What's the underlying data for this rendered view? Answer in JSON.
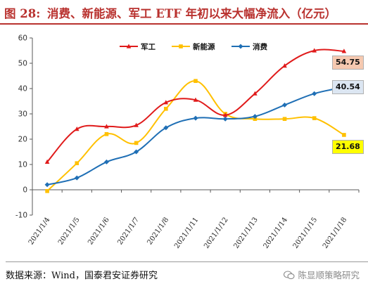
{
  "title": {
    "prefix": "图 28:",
    "text": "消费、新能源、军工 ETF 年初以来大幅净流入（亿元）"
  },
  "source": "数据来源：Wind，国泰君安证券研究",
  "watermark": "陈显顺策略研究",
  "colors": {
    "military": "#e01b1b",
    "newenergy": "#ffc000",
    "consumer": "#1f6fb5",
    "military_label_bg": "#f6c9b0",
    "newenergy_label_bg": "#ffff00",
    "consumer_label_bg": "#dce6f2"
  },
  "end_labels": {
    "military": "54.75",
    "consumer": "40.54",
    "newenergy": "21.68"
  },
  "chart_data": {
    "type": "line",
    "categories": [
      "2021/1/4",
      "2021/1/5",
      "2021/1/6",
      "2021/1/7",
      "2021/1/8",
      "2021/1/11",
      "2021/1/12",
      "2021/1/13",
      "2021/1/14",
      "2021/1/15",
      "2021/1/18"
    ],
    "ylim": [
      -10,
      60
    ],
    "yticks": [
      "-10",
      "0",
      "10",
      "20",
      "30",
      "40",
      "50",
      "60"
    ],
    "legend_position": "top-center",
    "series": [
      {
        "key": "military",
        "name": "军工",
        "values": [
          11.0,
          24.0,
          25.0,
          25.5,
          34.5,
          35.5,
          29.5,
          38.0,
          49.0,
          55.0,
          54.75
        ]
      },
      {
        "key": "newenergy",
        "name": "新能源",
        "values": [
          -0.5,
          10.5,
          22.0,
          18.5,
          32.0,
          43.0,
          30.0,
          28.0,
          28.0,
          28.3,
          21.68
        ]
      },
      {
        "key": "consumer",
        "name": "消费",
        "values": [
          2.0,
          4.7,
          11.0,
          15.0,
          24.5,
          28.3,
          28.0,
          29.0,
          33.5,
          38.0,
          40.54
        ]
      }
    ]
  }
}
